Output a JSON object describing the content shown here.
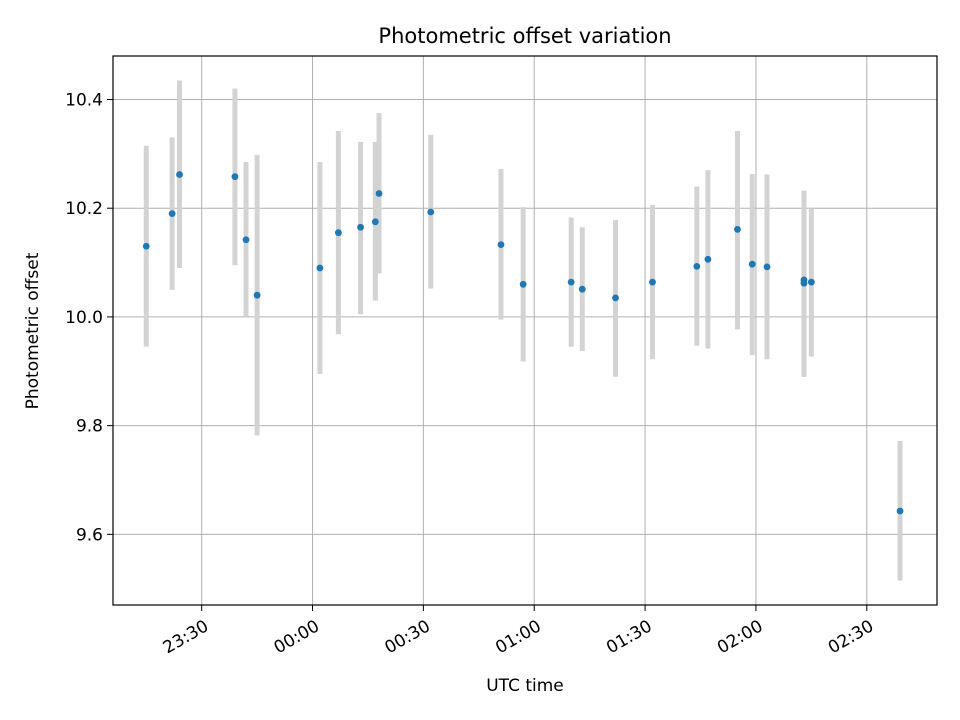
{
  "chart_data": {
    "type": "scatter",
    "title": "Photometric offset variation",
    "xlabel": "UTC time",
    "ylabel": "Photometric offset",
    "grid": true,
    "error_bar_color": "#d3d3d3",
    "marker_color": "#1f77b4",
    "x_axis": {
      "range": [
        "23:06",
        "02:49"
      ],
      "ticks": [
        "23:30",
        "00:00",
        "00:30",
        "01:00",
        "01:30",
        "02:00",
        "02:30"
      ]
    },
    "y_axis": {
      "range": [
        9.47,
        10.48
      ],
      "ticks": [
        "9.6",
        "9.8",
        "10.0",
        "10.2",
        "10.4"
      ]
    },
    "points": [
      {
        "time": "23:15",
        "y": 10.13,
        "y_low": 9.945,
        "y_high": 10.315
      },
      {
        "time": "23:22",
        "y": 10.19,
        "y_low": 10.05,
        "y_high": 10.33
      },
      {
        "time": "23:24",
        "y": 10.262,
        "y_low": 10.09,
        "y_high": 10.435
      },
      {
        "time": "23:39",
        "y": 10.258,
        "y_low": 10.095,
        "y_high": 10.42
      },
      {
        "time": "23:42",
        "y": 10.142,
        "y_low": 10.0,
        "y_high": 10.285
      },
      {
        "time": "23:45",
        "y": 10.04,
        "y_low": 9.782,
        "y_high": 10.298
      },
      {
        "time": "00:02",
        "y": 10.09,
        "y_low": 9.895,
        "y_high": 10.285
      },
      {
        "time": "00:07",
        "y": 10.155,
        "y_low": 9.968,
        "y_high": 10.342
      },
      {
        "time": "00:13",
        "y": 10.165,
        "y_low": 10.005,
        "y_high": 10.322
      },
      {
        "time": "00:17",
        "y": 10.175,
        "y_low": 10.03,
        "y_high": 10.322
      },
      {
        "time": "00:18",
        "y": 10.227,
        "y_low": 10.08,
        "y_high": 10.375
      },
      {
        "time": "00:32",
        "y": 10.193,
        "y_low": 10.052,
        "y_high": 10.335
      },
      {
        "time": "00:51",
        "y": 10.133,
        "y_low": 9.995,
        "y_high": 10.272
      },
      {
        "time": "00:57",
        "y": 10.06,
        "y_low": 9.918,
        "y_high": 10.202
      },
      {
        "time": "01:10",
        "y": 10.064,
        "y_low": 9.945,
        "y_high": 10.183
      },
      {
        "time": "01:13",
        "y": 10.051,
        "y_low": 9.937,
        "y_high": 10.165
      },
      {
        "time": "01:22",
        "y": 10.035,
        "y_low": 9.89,
        "y_high": 10.178
      },
      {
        "time": "01:32",
        "y": 10.064,
        "y_low": 9.922,
        "y_high": 10.206
      },
      {
        "time": "01:44",
        "y": 10.093,
        "y_low": 9.947,
        "y_high": 10.24
      },
      {
        "time": "01:47",
        "y": 10.106,
        "y_low": 9.942,
        "y_high": 10.27
      },
      {
        "time": "01:55",
        "y": 10.161,
        "y_low": 9.977,
        "y_high": 10.342
      },
      {
        "time": "01:59",
        "y": 10.097,
        "y_low": 9.93,
        "y_high": 10.263
      },
      {
        "time": "02:03",
        "y": 10.092,
        "y_low": 9.922,
        "y_high": 10.262
      },
      {
        "time": "02:13",
        "y": 10.068,
        "y_low": 9.89,
        "y_high": 10.232
      },
      {
        "time": "02:13",
        "y": 10.062,
        "y_low": 9.89,
        "y_high": 10.232
      },
      {
        "time": "02:15",
        "y": 10.064,
        "y_low": 9.927,
        "y_high": 10.2
      },
      {
        "time": "02:39",
        "y": 9.643,
        "y_low": 9.515,
        "y_high": 9.772
      }
    ]
  }
}
